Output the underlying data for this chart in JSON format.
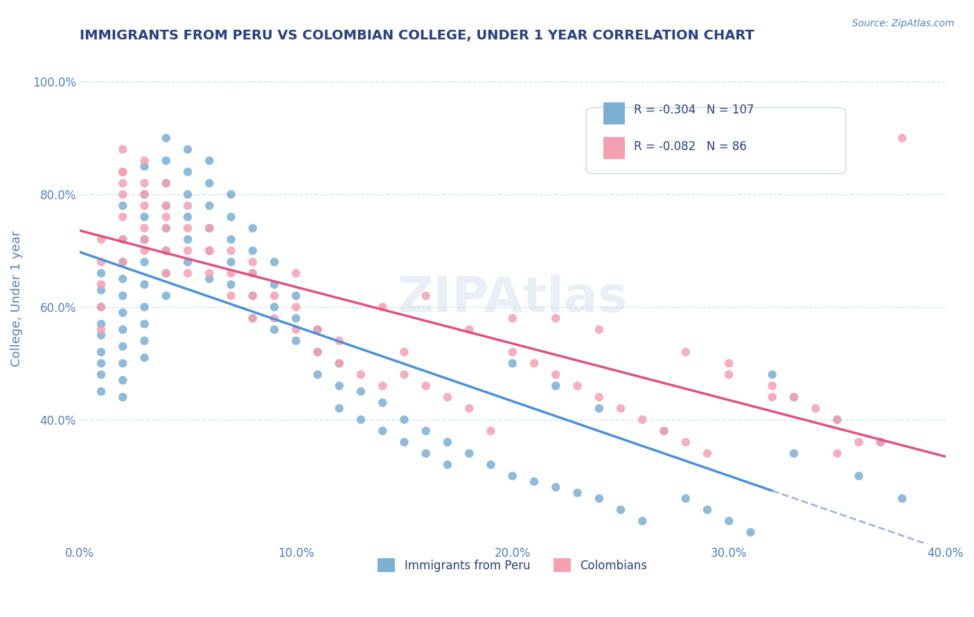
{
  "title": "IMMIGRANTS FROM PERU VS COLOMBIAN COLLEGE, UNDER 1 YEAR CORRELATION CHART",
  "source": "Source: ZipAtlas.com",
  "xlabel": "",
  "ylabel": "College, Under 1 year",
  "legend_peru": "Immigrants from Peru",
  "legend_colombia": "Colombians",
  "r_peru": -0.304,
  "n_peru": 107,
  "r_colombia": -0.082,
  "n_colombia": 86,
  "xlim": [
    0.0,
    0.4
  ],
  "ylim": [
    0.18,
    1.05
  ],
  "x_ticks": [
    0.0,
    0.1,
    0.2,
    0.3,
    0.4
  ],
  "y_ticks": [
    0.4,
    0.6,
    0.8,
    1.0
  ],
  "x_tick_labels": [
    "0.0%",
    "10.0%",
    "20.0%",
    "30.0%",
    "40.0%"
  ],
  "y_tick_labels": [
    "40.0%",
    "60.0%",
    "80.0%",
    "100.0%"
  ],
  "color_peru": "#7bafd4",
  "color_colombia": "#f4a0b0",
  "color_peru_line": "#4a90d9",
  "color_colombia_line": "#e05080",
  "color_dashed": "#a0b8d8",
  "background": "#ffffff",
  "grid_color": "#c8d8e8",
  "title_color": "#2a4080",
  "axis_color": "#5080c0",
  "peru_scatter_x": [
    0.01,
    0.01,
    0.01,
    0.01,
    0.01,
    0.01,
    0.01,
    0.01,
    0.01,
    0.02,
    0.02,
    0.02,
    0.02,
    0.02,
    0.02,
    0.02,
    0.02,
    0.02,
    0.02,
    0.02,
    0.03,
    0.03,
    0.03,
    0.03,
    0.03,
    0.03,
    0.03,
    0.03,
    0.03,
    0.03,
    0.04,
    0.04,
    0.04,
    0.04,
    0.04,
    0.04,
    0.04,
    0.04,
    0.05,
    0.05,
    0.05,
    0.05,
    0.05,
    0.05,
    0.06,
    0.06,
    0.06,
    0.06,
    0.06,
    0.06,
    0.07,
    0.07,
    0.07,
    0.07,
    0.07,
    0.08,
    0.08,
    0.08,
    0.08,
    0.08,
    0.09,
    0.09,
    0.09,
    0.09,
    0.1,
    0.1,
    0.1,
    0.11,
    0.11,
    0.11,
    0.12,
    0.12,
    0.12,
    0.13,
    0.13,
    0.14,
    0.14,
    0.15,
    0.15,
    0.16,
    0.16,
    0.17,
    0.17,
    0.18,
    0.19,
    0.2,
    0.21,
    0.22,
    0.23,
    0.24,
    0.25,
    0.26,
    0.28,
    0.29,
    0.3,
    0.31,
    0.32,
    0.33,
    0.35,
    0.37,
    0.2,
    0.22,
    0.24,
    0.27,
    0.33,
    0.36,
    0.38
  ],
  "peru_scatter_y": [
    0.66,
    0.63,
    0.6,
    0.57,
    0.55,
    0.52,
    0.5,
    0.48,
    0.45,
    0.78,
    0.72,
    0.68,
    0.65,
    0.62,
    0.59,
    0.56,
    0.53,
    0.5,
    0.47,
    0.44,
    0.85,
    0.8,
    0.76,
    0.72,
    0.68,
    0.64,
    0.6,
    0.57,
    0.54,
    0.51,
    0.9,
    0.86,
    0.82,
    0.78,
    0.74,
    0.7,
    0.66,
    0.62,
    0.88,
    0.84,
    0.8,
    0.76,
    0.72,
    0.68,
    0.86,
    0.82,
    0.78,
    0.74,
    0.7,
    0.65,
    0.8,
    0.76,
    0.72,
    0.68,
    0.64,
    0.74,
    0.7,
    0.66,
    0.62,
    0.58,
    0.68,
    0.64,
    0.6,
    0.56,
    0.62,
    0.58,
    0.54,
    0.56,
    0.52,
    0.48,
    0.5,
    0.46,
    0.42,
    0.45,
    0.4,
    0.43,
    0.38,
    0.4,
    0.36,
    0.38,
    0.34,
    0.36,
    0.32,
    0.34,
    0.32,
    0.3,
    0.29,
    0.28,
    0.27,
    0.26,
    0.24,
    0.22,
    0.26,
    0.24,
    0.22,
    0.2,
    0.48,
    0.44,
    0.4,
    0.36,
    0.5,
    0.46,
    0.42,
    0.38,
    0.34,
    0.3,
    0.26
  ],
  "colombia_scatter_x": [
    0.01,
    0.01,
    0.01,
    0.01,
    0.01,
    0.02,
    0.02,
    0.02,
    0.02,
    0.02,
    0.02,
    0.03,
    0.03,
    0.03,
    0.03,
    0.03,
    0.04,
    0.04,
    0.04,
    0.04,
    0.04,
    0.05,
    0.05,
    0.05,
    0.05,
    0.06,
    0.06,
    0.06,
    0.07,
    0.07,
    0.07,
    0.08,
    0.08,
    0.08,
    0.09,
    0.09,
    0.1,
    0.1,
    0.11,
    0.11,
    0.12,
    0.12,
    0.13,
    0.14,
    0.15,
    0.15,
    0.16,
    0.17,
    0.18,
    0.19,
    0.2,
    0.21,
    0.22,
    0.23,
    0.24,
    0.25,
    0.26,
    0.27,
    0.28,
    0.29,
    0.3,
    0.32,
    0.33,
    0.34,
    0.35,
    0.37,
    0.38,
    0.35,
    0.36,
    0.22,
    0.24,
    0.28,
    0.3,
    0.32,
    0.14,
    0.18,
    0.16,
    0.2,
    0.08,
    0.1,
    0.06,
    0.04,
    0.03,
    0.03,
    0.02,
    0.02
  ],
  "colombia_scatter_y": [
    0.72,
    0.68,
    0.64,
    0.6,
    0.56,
    0.88,
    0.84,
    0.8,
    0.76,
    0.72,
    0.68,
    0.86,
    0.82,
    0.78,
    0.74,
    0.7,
    0.82,
    0.78,
    0.74,
    0.7,
    0.66,
    0.78,
    0.74,
    0.7,
    0.66,
    0.74,
    0.7,
    0.66,
    0.7,
    0.66,
    0.62,
    0.66,
    0.62,
    0.58,
    0.62,
    0.58,
    0.6,
    0.56,
    0.56,
    0.52,
    0.54,
    0.5,
    0.48,
    0.46,
    0.52,
    0.48,
    0.46,
    0.44,
    0.42,
    0.38,
    0.52,
    0.5,
    0.48,
    0.46,
    0.44,
    0.42,
    0.4,
    0.38,
    0.36,
    0.34,
    0.5,
    0.46,
    0.44,
    0.42,
    0.4,
    0.36,
    0.9,
    0.34,
    0.36,
    0.58,
    0.56,
    0.52,
    0.48,
    0.44,
    0.6,
    0.56,
    0.62,
    0.58,
    0.68,
    0.66,
    0.7,
    0.76,
    0.8,
    0.72,
    0.82,
    0.84
  ]
}
